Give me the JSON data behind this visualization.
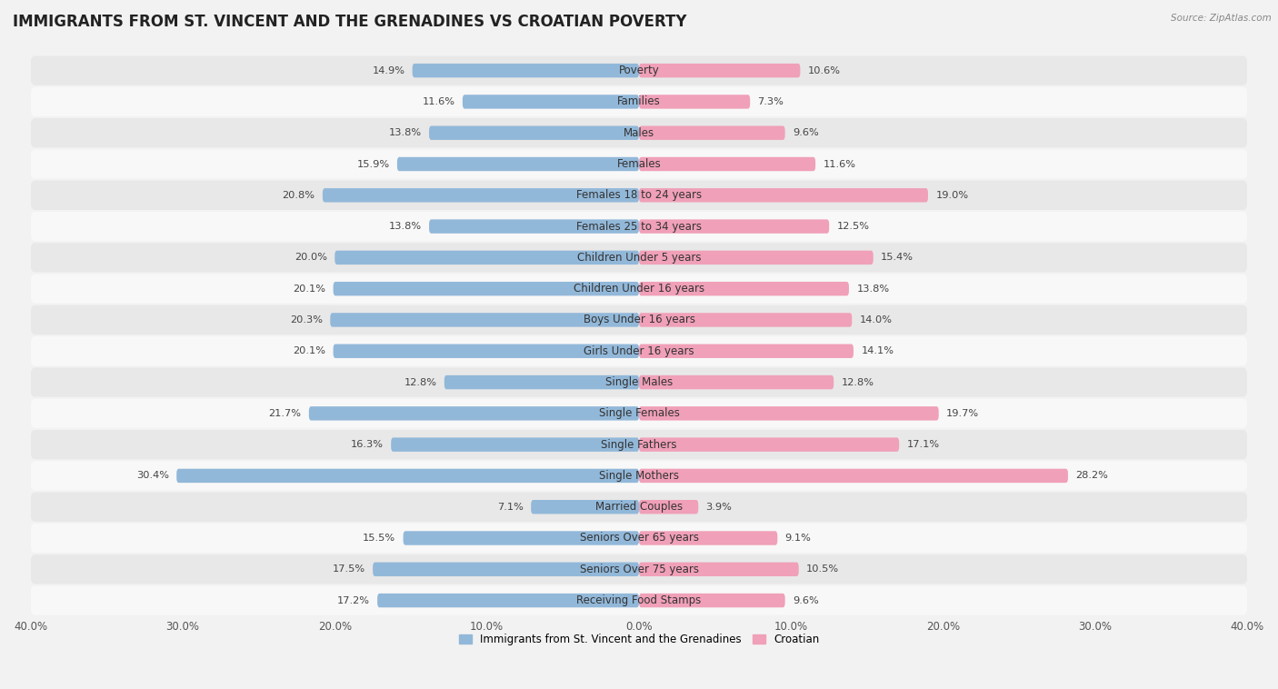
{
  "title": "IMMIGRANTS FROM ST. VINCENT AND THE GRENADINES VS CROATIAN POVERTY",
  "source": "Source: ZipAtlas.com",
  "categories": [
    "Poverty",
    "Families",
    "Males",
    "Females",
    "Females 18 to 24 years",
    "Females 25 to 34 years",
    "Children Under 5 years",
    "Children Under 16 years",
    "Boys Under 16 years",
    "Girls Under 16 years",
    "Single Males",
    "Single Females",
    "Single Fathers",
    "Single Mothers",
    "Married Couples",
    "Seniors Over 65 years",
    "Seniors Over 75 years",
    "Receiving Food Stamps"
  ],
  "left_values": [
    14.9,
    11.6,
    13.8,
    15.9,
    20.8,
    13.8,
    20.0,
    20.1,
    20.3,
    20.1,
    12.8,
    21.7,
    16.3,
    30.4,
    7.1,
    15.5,
    17.5,
    17.2
  ],
  "right_values": [
    10.6,
    7.3,
    9.6,
    11.6,
    19.0,
    12.5,
    15.4,
    13.8,
    14.0,
    14.1,
    12.8,
    19.7,
    17.1,
    28.2,
    3.9,
    9.1,
    10.5,
    9.6
  ],
  "left_color": "#92b8d9",
  "right_color": "#f0a0b8",
  "left_label": "Immigrants from St. Vincent and the Grenadines",
  "right_label": "Croatian",
  "axis_max": 40.0,
  "bg_color": "#f2f2f2",
  "row_bg_light": "#f8f8f8",
  "row_bg_dark": "#e8e8e8",
  "title_fontsize": 12,
  "label_fontsize": 8.5,
  "value_fontsize": 8.2,
  "axis_label_fontsize": 8.5
}
